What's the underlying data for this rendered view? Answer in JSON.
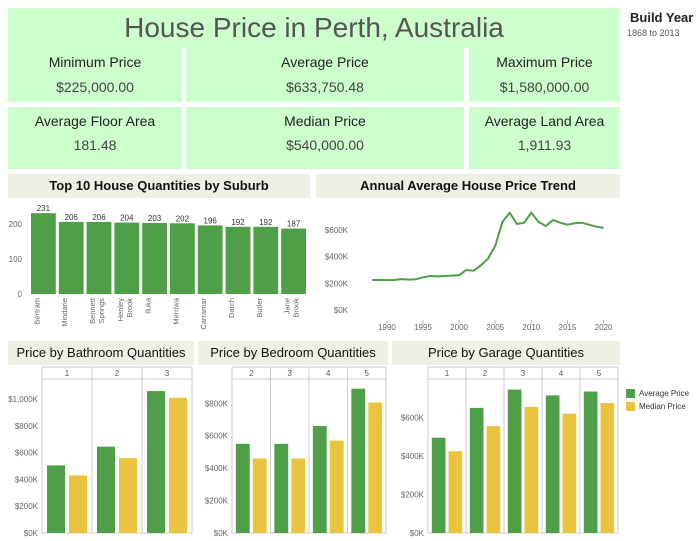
{
  "title": "House Price in Perth, Australia",
  "build_year": {
    "title": "Build Year",
    "range": "1868 to 2013"
  },
  "kpis": [
    {
      "label": "Minimum Price",
      "value": "$225,000.00"
    },
    {
      "label": "Average Price",
      "value": "$633,750.48"
    },
    {
      "label": "Maximum Price",
      "value": "$1,580,000.00"
    },
    {
      "label": "Average Floor Area",
      "value": "181.48"
    },
    {
      "label": "Median Price",
      "value": "$540,000.00"
    },
    {
      "label": "Average Land Area",
      "value": "1,911.93"
    }
  ],
  "colors": {
    "green": "#4e9f47",
    "yellow": "#ebc43f",
    "kpi_bg": "#ccffcc",
    "title_bg": "#eef0e6"
  },
  "legend": {
    "avg": "Average Price",
    "median": "Median Price"
  },
  "chart_data": [
    {
      "type": "bar",
      "title": "Top 10 House Quantities by Suburb",
      "categories": [
        "Bertram",
        "Mindarie",
        "Bennett Springs",
        "Henley Brook",
        "Iluka",
        "Merriwa",
        "Carramar",
        "Darch",
        "Butler",
        "Jane Brook"
      ],
      "category_lines": [
        [
          "Bertram"
        ],
        [
          "Mindarie"
        ],
        [
          "Bennett",
          "Springs"
        ],
        [
          "Henley",
          "Brook"
        ],
        [
          "Iluka"
        ],
        [
          "Merriwa"
        ],
        [
          "Carramar"
        ],
        [
          "Darch"
        ],
        [
          "Butler"
        ],
        [
          "Jane",
          "Brook"
        ]
      ],
      "values": [
        231,
        206,
        206,
        204,
        203,
        202,
        196,
        192,
        192,
        187
      ],
      "yticks": [
        0,
        100,
        200
      ],
      "ylim": [
        0,
        240
      ]
    },
    {
      "type": "line",
      "title": "Annual Average House Price Trend",
      "x": [
        1988,
        1989,
        1990,
        1991,
        1992,
        1993,
        1994,
        1995,
        1996,
        1997,
        1998,
        1999,
        2000,
        2001,
        2002,
        2003,
        2004,
        2005,
        2006,
        2007,
        2008,
        2009,
        2010,
        2011,
        2012,
        2013,
        2014,
        2015,
        2016,
        2017,
        2018,
        2019,
        2020
      ],
      "y": [
        225000,
        225000,
        224000,
        225000,
        232000,
        228000,
        230000,
        245000,
        255000,
        252000,
        255000,
        258000,
        262000,
        300000,
        295000,
        335000,
        385000,
        480000,
        660000,
        730000,
        645000,
        655000,
        730000,
        660000,
        630000,
        675000,
        655000,
        640000,
        650000,
        655000,
        640000,
        625000,
        615000
      ],
      "xticks": [
        1990,
        1995,
        2000,
        2005,
        2010,
        2015,
        2020
      ],
      "xtick_labels": [
        "1990",
        "1995",
        "2000",
        "2005",
        "2010",
        "2015",
        "2020"
      ],
      "yticks": [
        0,
        200000,
        400000,
        600000
      ],
      "ytick_labels": [
        "$0K",
        "$200K",
        "$400K",
        "$600K"
      ],
      "xlim": [
        1986,
        2022
      ],
      "ylim": [
        0,
        780000
      ]
    },
    {
      "type": "bar",
      "title": "Price by Bathroom Quantities",
      "categories": [
        "1",
        "2",
        "3"
      ],
      "series": [
        {
          "name": "Average Price",
          "values": [
            505000,
            645000,
            1060000
          ]
        },
        {
          "name": "Median Price",
          "values": [
            430000,
            560000,
            1010000
          ]
        }
      ],
      "yticks": [
        0,
        200000,
        400000,
        600000,
        800000,
        1000000
      ],
      "ytick_labels": [
        "$0K",
        "$200K",
        "$400K",
        "$600K",
        "$800K",
        "$1,000K"
      ],
      "ylim": [
        0,
        1150000
      ]
    },
    {
      "type": "bar",
      "title": "Price by Bedroom Quantities",
      "categories": [
        "2",
        "3",
        "4",
        "5"
      ],
      "series": [
        {
          "name": "Average Price",
          "values": [
            550000,
            550000,
            660000,
            890000
          ]
        },
        {
          "name": "Median Price",
          "values": [
            460000,
            460000,
            570000,
            805000
          ]
        }
      ],
      "yticks": [
        0,
        200000,
        400000,
        600000,
        800000
      ],
      "ytick_labels": [
        "$0K",
        "$200K",
        "$400K",
        "$600K",
        "$800K"
      ],
      "ylim": [
        0,
        950000
      ]
    },
    {
      "type": "bar",
      "title": "Price by Garage Quantities",
      "categories": [
        "1",
        "2",
        "3",
        "4",
        "5"
      ],
      "series": [
        {
          "name": "Average Price",
          "values": [
            495000,
            650000,
            745000,
            715000,
            735000
          ]
        },
        {
          "name": "Median Price",
          "values": [
            425000,
            555000,
            655000,
            620000,
            675000
          ]
        }
      ],
      "yticks": [
        0,
        200000,
        400000,
        600000
      ],
      "ytick_labels": [
        "$0K",
        "$200K",
        "$400K",
        "$600K"
      ],
      "ylim": [
        0,
        800000
      ]
    }
  ]
}
